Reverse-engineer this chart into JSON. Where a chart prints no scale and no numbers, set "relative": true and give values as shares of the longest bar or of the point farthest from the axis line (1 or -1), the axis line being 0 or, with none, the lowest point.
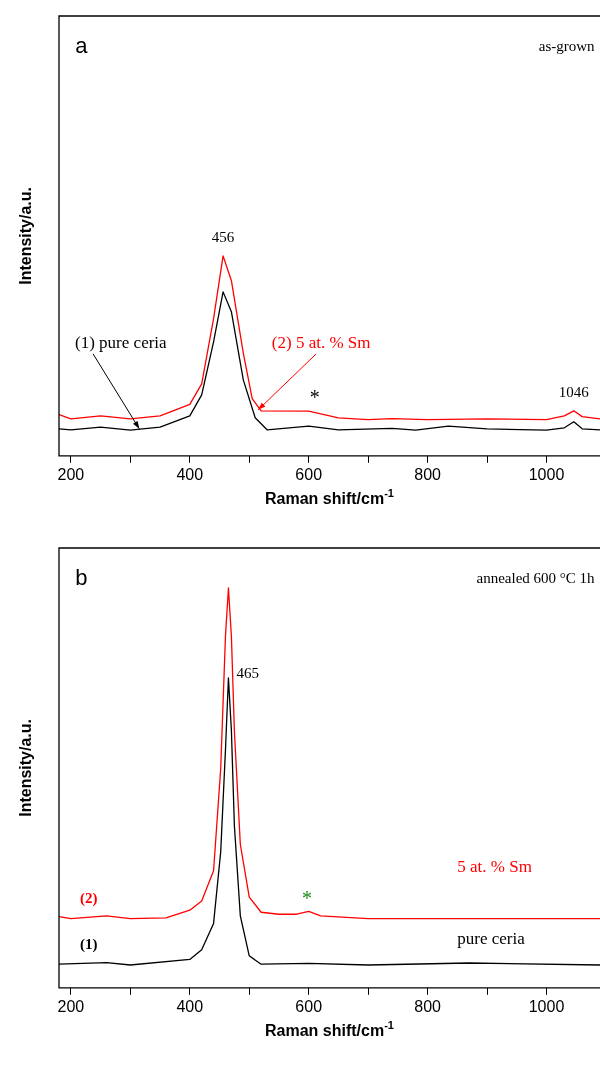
{
  "chart_data": [
    {
      "type": "line",
      "xlabel": "Raman shift/cm$^{-1}$",
      "ylabel": "Intensity/a.u.",
      "relative": true,
      "marker": "none",
      "line_style": "solid",
      "legend": false,
      "grid": false,
      "xlim": [
        180,
        1090
      ],
      "xticks": [
        200,
        {
          "value": 300,
          "label": null
        },
        400,
        {
          "value": 500,
          "label": null
        },
        600,
        {
          "value": 700,
          "label": null
        },
        800,
        {
          "value": 900,
          "label": null
        },
        1000
      ],
      "annotations": [
        "a",
        "as-grown",
        {
          "text": "456",
          "x": 456,
          "y": 1
        },
        {
          "text": "1046",
          "x": 1046,
          "y": 0.225
        },
        {
          "text": "*",
          "x": 610,
          "y": 0.223
        }
      ],
      "series": [
        {
          "name": "(1) pure ceria",
          "color": "#000000",
          "x": [
            180,
            200,
            250,
            300,
            350,
            400,
            420,
            440,
            456,
            470,
            490,
            510,
            530,
            600,
            650,
            740,
            780,
            835,
            900,
            1000,
            1030,
            1046,
            1060,
            1090
          ],
          "values": [
            0.135,
            0.13,
            0.143,
            0.128,
            0.143,
            0.2,
            0.305,
            0.57,
            0.82,
            0.72,
            0.38,
            0.19,
            0.13,
            0.148,
            0.13,
            0.137,
            0.128,
            0.148,
            0.135,
            0.128,
            0.14,
            0.17,
            0.135,
            0.13
          ]
        },
        {
          "name": "(2) 5 at. % Sm",
          "color": "#ff0000",
          "x": [
            180,
            200,
            250,
            300,
            350,
            400,
            420,
            440,
            456,
            470,
            490,
            505,
            520,
            600,
            650,
            700,
            740,
            800,
            900,
            1000,
            1030,
            1046,
            1060,
            1090
          ],
          "values": [
            0.206,
            0.185,
            0.2,
            0.185,
            0.2,
            0.257,
            0.36,
            0.686,
            1,
            0.876,
            0.514,
            0.286,
            0.225,
            0.223,
            0.19,
            0.181,
            0.186,
            0.181,
            0.185,
            0.181,
            0.2,
            0.225,
            0.196,
            0.185
          ]
        }
      ]
    },
    {
      "type": "line",
      "xlabel": "Raman shift/cm$^{-1}$",
      "ylabel": "Intensity/a.u.",
      "relative": true,
      "marker": "none",
      "line_style": "solid",
      "legend": false,
      "grid": false,
      "xlim": [
        180,
        1090
      ],
      "xticks": [
        200,
        {
          "value": 300,
          "label": null
        },
        400,
        {
          "value": 500,
          "label": null
        },
        600,
        {
          "value": 700,
          "label": null
        },
        800,
        {
          "value": 900,
          "label": null
        },
        1000
      ],
      "annotations": [
        "b",
        "annealed 600 °C 1h",
        {
          "text": "465",
          "x": 465,
          "y": 0.775
        },
        {
          "text": "*",
          "x": 597,
          "y": 0.191
        },
        {
          "text": "(2)",
          "x": 230,
          "y": 0.173
        },
        {
          "text": "(1)",
          "x": 230,
          "y": 0.057
        }
      ],
      "series": [
        {
          "name": "pure ceria",
          "color": "#000000",
          "x": [
            180,
            260,
            300,
            400,
            420,
            440,
            452,
            460,
            465,
            470,
            475,
            485,
            500,
            520,
            600,
            700,
            870,
            1090
          ],
          "values": [
            0.059,
            0.063,
            0.057,
            0.071,
            0.095,
            0.161,
            0.34,
            0.595,
            0.775,
            0.643,
            0.406,
            0.18,
            0.08,
            0.059,
            0.061,
            0.057,
            0.062,
            0.057
          ]
        },
        {
          "name": "5 at. % Sm",
          "color": "#ff0000",
          "x": [
            180,
            200,
            260,
            300,
            360,
            400,
            420,
            440,
            452,
            460,
            465,
            470,
            475,
            485,
            500,
            520,
            550,
            580,
            600,
            620,
            700,
            1000,
            1090
          ],
          "values": [
            0.178,
            0.173,
            0.18,
            0.173,
            0.175,
            0.194,
            0.217,
            0.293,
            0.548,
            0.879,
            1,
            0.879,
            0.643,
            0.359,
            0.227,
            0.189,
            0.184,
            0.184,
            0.191,
            0.18,
            0.173,
            0.173,
            0.173
          ]
        }
      ]
    }
  ]
}
